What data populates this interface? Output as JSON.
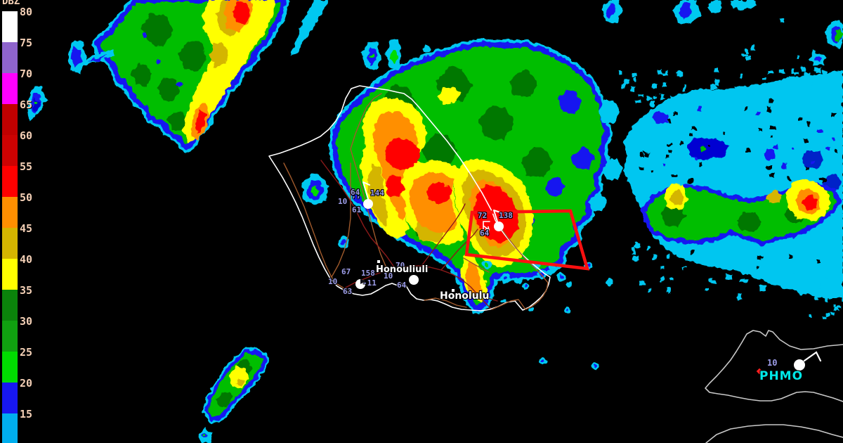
{
  "colorbar": {
    "title": "DBZ",
    "tick_labels": [
      "80",
      "75",
      "70",
      "65",
      "60",
      "55",
      "50",
      "45",
      "40",
      "35",
      "30",
      "25",
      "20",
      "15"
    ],
    "band_colors": [
      "#FFFFFF",
      "#8E64CC",
      "#FF00FF",
      "#C00000",
      "#CC0202",
      "#FF0000",
      "#FF8F00",
      "#D4B500",
      "#FFFF00",
      "#0B830B",
      "#10A010",
      "#00DC00",
      "#1717F0",
      "#00AEEE"
    ]
  },
  "stations": {
    "station1": {
      "temp": "64",
      "pressure": "144",
      "visibility": "10",
      "weather": "’’",
      "dewpoint": "61"
    },
    "station2": {
      "temp": "72",
      "pressure": "138",
      "dewpoint": "64"
    },
    "station3": {
      "temp": "67",
      "pressure": "158",
      "tendency": "-11",
      "visibility": "10",
      "dewpoint": "63"
    },
    "station4": {
      "temp": "70",
      "visibility": "10",
      "dewpoint": "64"
    },
    "station5": {
      "visibility": "10",
      "id": "PHMO"
    }
  },
  "places": {
    "honouliuli": "Honouliuli",
    "honolulu": "Honolulu"
  },
  "warning": {
    "color": "#FF1010"
  }
}
